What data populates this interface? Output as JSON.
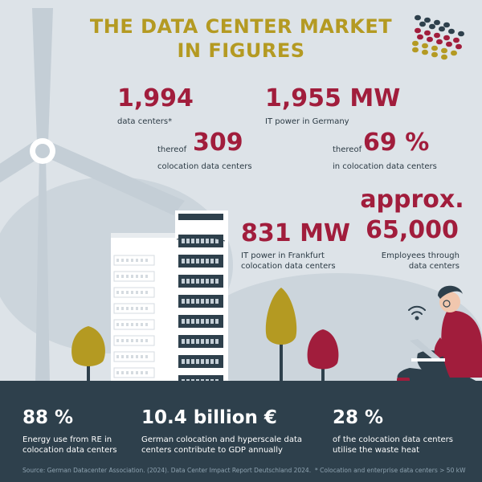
{
  "title_line1": "THE DATA CENTER MARKET",
  "title_line2": "IN FIGURES",
  "stats": {
    "data_centers": {
      "value": "1,994",
      "label": "data centers*"
    },
    "it_power": {
      "value": "1,955 MW",
      "label": "IT power in Germany"
    },
    "colocation": {
      "prefix": "thereof",
      "value": "309",
      "label": "colocation data centers"
    },
    "colocation_power": {
      "prefix": "thereof",
      "value": "69 %",
      "label": "in colocation data centers"
    },
    "frankfurt": {
      "value": "831 MW",
      "label_line1": "IT power in Frankfurt",
      "label_line2": "colocation data centers"
    },
    "employees": {
      "value_line1": "approx.",
      "value_line2": "65,000",
      "label_line1": "Employees through",
      "label_line2": "data centers"
    }
  },
  "footer": {
    "renewable": {
      "value": "88 %",
      "label_line1": "Energy use from RE in",
      "label_line2": "colocation data centers"
    },
    "gdp": {
      "value": "10.4 billion €",
      "label_line1": "German colocation and hyperscale data",
      "label_line2": "centers contribute to GDP annually"
    },
    "waste_heat": {
      "value": "28 %",
      "label_line1": "of the colocation data centers",
      "label_line2": "utilise the waste heat"
    },
    "source": "Source: German Datacenter Association. (2024). Data Center Impact Report Deutschland 2024.",
    "footnote": "* Colocation and enterprise data centers > 50 kW"
  },
  "colors": {
    "title": "#b49a22",
    "accent": "#a11d3c",
    "footer_bg": "#2e404c",
    "background": "#dde3e8"
  },
  "icons": [
    "wind-turbine-icon",
    "server-rack-icon",
    "tree-icon",
    "wifi-icon",
    "person-laptop-icon",
    "dots-logo-icon"
  ]
}
